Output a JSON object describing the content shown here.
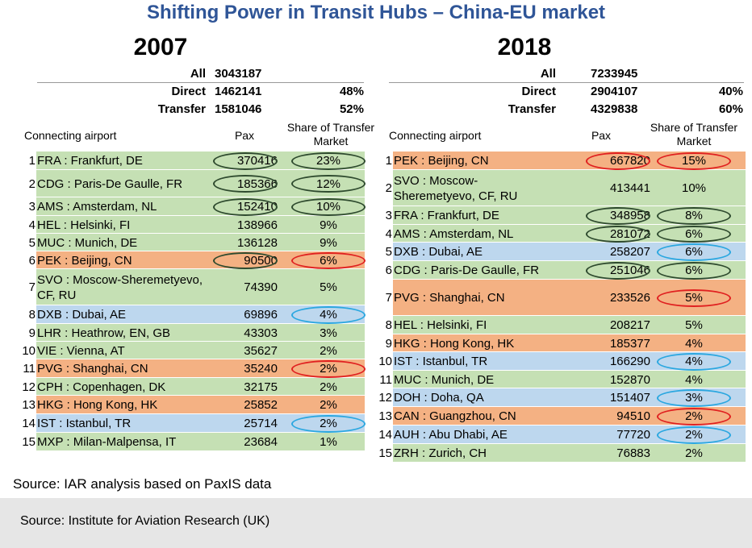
{
  "title": "Shifting Power in Transit Hubs – China-EU market",
  "colors": {
    "green": "#c5e0b4",
    "orange": "#f4b183",
    "blue": "#bdd7ee",
    "oval_dark": "#2e4a2e",
    "oval_red": "#e02020",
    "oval_blue": "#2aa7e0"
  },
  "panels": [
    {
      "year": "2007",
      "summary": [
        {
          "label": "All",
          "value": "3043187",
          "share": ""
        },
        {
          "label": "Direct",
          "value": "1462141",
          "share": "48%"
        },
        {
          "label": "Transfer",
          "value": "1581046",
          "share": "52%"
        }
      ],
      "headers": {
        "airport": "Connecting airport",
        "pax": "Pax",
        "share": "Share of Transfer Market"
      },
      "rows": [
        {
          "rank": "1",
          "airport": "FRA : Frankfurt, DE",
          "pax": "370416",
          "share": "23%",
          "color": "green",
          "pax_oval": "dark",
          "share_oval": "dark"
        },
        {
          "rank": "2",
          "airport": "CDG : Paris-De Gaulle, FR",
          "pax": "185366",
          "share": "12%",
          "color": "green",
          "pax_oval": "dark",
          "share_oval": "dark"
        },
        {
          "rank": "3",
          "airport": "AMS : Amsterdam, NL",
          "pax": "152410",
          "share": "10%",
          "color": "green",
          "pax_oval": "dark",
          "share_oval": "dark"
        },
        {
          "rank": "4",
          "airport": "HEL : Helsinki, FI",
          "pax": "138966",
          "share": "9%",
          "color": "green",
          "pax_oval": "",
          "share_oval": ""
        },
        {
          "rank": "5",
          "airport": "MUC : Munich, DE",
          "pax": "136128",
          "share": "9%",
          "color": "green",
          "pax_oval": "",
          "share_oval": ""
        },
        {
          "rank": "6",
          "airport": "PEK : Beijing, CN",
          "pax": "90500",
          "share": "6%",
          "color": "orange",
          "pax_oval": "dark",
          "share_oval": "red"
        },
        {
          "rank": "7",
          "airport": "SVO : Moscow-Sheremetyevo, CF, RU",
          "pax": "74390",
          "share": "5%",
          "color": "green",
          "pax_oval": "",
          "share_oval": ""
        },
        {
          "rank": "8",
          "airport": "DXB : Dubai, AE",
          "pax": "69896",
          "share": "4%",
          "color": "blue",
          "pax_oval": "",
          "share_oval": "blue"
        },
        {
          "rank": "9",
          "airport": "LHR : Heathrow, EN, GB",
          "pax": "43303",
          "share": "3%",
          "color": "green",
          "pax_oval": "",
          "share_oval": ""
        },
        {
          "rank": "10",
          "airport": "VIE : Vienna, AT",
          "pax": "35627",
          "share": "2%",
          "color": "green",
          "pax_oval": "",
          "share_oval": ""
        },
        {
          "rank": "11",
          "airport": "PVG : Shanghai, CN",
          "pax": "35240",
          "share": "2%",
          "color": "orange",
          "pax_oval": "",
          "share_oval": "red"
        },
        {
          "rank": "12",
          "airport": "CPH : Copenhagen, DK",
          "pax": "32175",
          "share": "2%",
          "color": "green",
          "pax_oval": "",
          "share_oval": ""
        },
        {
          "rank": "13",
          "airport": "HKG : Hong Kong, HK",
          "pax": "25852",
          "share": "2%",
          "color": "orange",
          "pax_oval": "",
          "share_oval": ""
        },
        {
          "rank": "14",
          "airport": "IST : Istanbul, TR",
          "pax": "25714",
          "share": "2%",
          "color": "blue",
          "pax_oval": "",
          "share_oval": "blue"
        },
        {
          "rank": "15",
          "airport": "MXP : Milan-Malpensa, IT",
          "pax": "23684",
          "share": "1%",
          "color": "green",
          "pax_oval": "",
          "share_oval": ""
        }
      ]
    },
    {
      "year": "2018",
      "summary": [
        {
          "label": "All",
          "value": "7233945",
          "share": ""
        },
        {
          "label": "Direct",
          "value": "2904107",
          "share": "40%"
        },
        {
          "label": "Transfer",
          "value": "4329838",
          "share": "60%"
        }
      ],
      "headers": {
        "airport": "Connecting airport",
        "pax": "Pax",
        "share": "Share of Transfer Market"
      },
      "rows": [
        {
          "rank": "1",
          "airport": "PEK : Beijing, CN",
          "pax": "667820",
          "share": "15%",
          "color": "orange",
          "pax_oval": "red",
          "share_oval": "red"
        },
        {
          "rank": "2",
          "airport": "SVO : Moscow-Sheremetyevo, CF, RU",
          "pax": "413441",
          "share": "10%",
          "color": "green",
          "pax_oval": "",
          "share_oval": ""
        },
        {
          "rank": "3",
          "airport": "FRA : Frankfurt, DE",
          "pax": "348958",
          "share": "8%",
          "color": "green",
          "pax_oval": "dark",
          "share_oval": "dark"
        },
        {
          "rank": "4",
          "airport": "AMS : Amsterdam, NL",
          "pax": "281072",
          "share": "6%",
          "color": "green",
          "pax_oval": "dark",
          "share_oval": "dark"
        },
        {
          "rank": "5",
          "airport": "DXB : Dubai, AE",
          "pax": "258207",
          "share": "6%",
          "color": "blue",
          "pax_oval": "",
          "share_oval": "blue"
        },
        {
          "rank": "6",
          "airport": "CDG : Paris-De Gaulle, FR",
          "pax": "251046",
          "share": "6%",
          "color": "green",
          "pax_oval": "dark",
          "share_oval": "dark"
        },
        {
          "rank": "7",
          "airport": "PVG : Shanghai, CN",
          "pax": "233526",
          "share": "5%",
          "color": "orange",
          "pax_oval": "",
          "share_oval": "red"
        },
        {
          "rank": "8",
          "airport": "HEL : Helsinki, FI",
          "pax": "208217",
          "share": "5%",
          "color": "green",
          "pax_oval": "",
          "share_oval": ""
        },
        {
          "rank": "9",
          "airport": "HKG : Hong Kong, HK",
          "pax": "185377",
          "share": "4%",
          "color": "orange",
          "pax_oval": "",
          "share_oval": ""
        },
        {
          "rank": "10",
          "airport": "IST : Istanbul, TR",
          "pax": "166290",
          "share": "4%",
          "color": "blue",
          "pax_oval": "",
          "share_oval": "blue"
        },
        {
          "rank": "11",
          "airport": "MUC : Munich, DE",
          "pax": "152870",
          "share": "4%",
          "color": "green",
          "pax_oval": "",
          "share_oval": ""
        },
        {
          "rank": "12",
          "airport": "DOH : Doha, QA",
          "pax": "151407",
          "share": "3%",
          "color": "blue",
          "pax_oval": "",
          "share_oval": "blue"
        },
        {
          "rank": "13",
          "airport": "CAN : Guangzhou, CN",
          "pax": "94510",
          "share": "2%",
          "color": "orange",
          "pax_oval": "",
          "share_oval": "red"
        },
        {
          "rank": "14",
          "airport": "AUH : Abu Dhabi, AE",
          "pax": "77720",
          "share": "2%",
          "color": "blue",
          "pax_oval": "",
          "share_oval": "blue"
        },
        {
          "rank": "15",
          "airport": "ZRH : Zurich, CH",
          "pax": "76883",
          "share": "2%",
          "color": "green",
          "pax_oval": "",
          "share_oval": ""
        }
      ]
    }
  ],
  "source_note": "Source: IAR analysis based on PaxIS data",
  "footer_source": "Source: Institute for Aviation Research (UK)"
}
